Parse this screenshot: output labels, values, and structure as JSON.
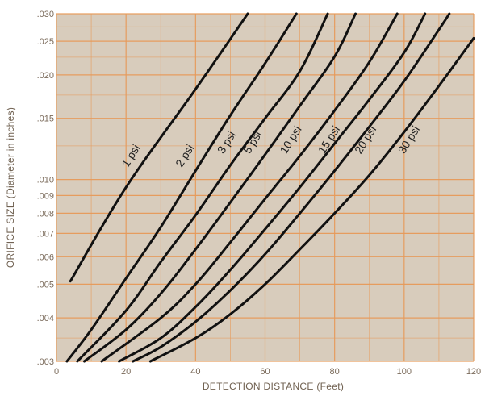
{
  "colors": {
    "plot_background": "#d8ccbc",
    "grid_color": "#e79a5a",
    "curve_color": "#111111",
    "tick_text_color": "#7a6a5a"
  },
  "chart_data": {
    "type": "line",
    "title": "",
    "xlabel": "DETECTION DISTANCE (Feet)",
    "ylabel": "ORIFICE SIZE (Diameter in inches)",
    "x_scale": "linear",
    "y_scale": "log",
    "xlim": [
      0,
      120
    ],
    "ylim": [
      0.003,
      0.03
    ],
    "grid": true,
    "x_ticks": [
      0,
      20,
      40,
      60,
      80,
      100,
      120
    ],
    "x_tick_labels": [
      "0",
      "20",
      "40",
      "60",
      "80",
      "100",
      "120"
    ],
    "y_ticks": [
      0.003,
      0.004,
      0.005,
      0.006,
      0.007,
      0.008,
      0.009,
      0.01,
      0.015,
      0.02,
      0.025,
      0.03
    ],
    "y_tick_labels": [
      ".003",
      ".004",
      ".005",
      ".006",
      ".007",
      ".008",
      ".009",
      ".010",
      ".015",
      ".020",
      ".025",
      ".030"
    ],
    "series": [
      {
        "name": "1 psi",
        "points": [
          [
            4,
            0.0051
          ],
          [
            20,
            0.0095
          ],
          [
            40,
            0.0182
          ],
          [
            55,
            0.03
          ]
        ]
      },
      {
        "name": "2 psi",
        "points": [
          [
            3,
            0.003
          ],
          [
            10,
            0.0037
          ],
          [
            20,
            0.0052
          ],
          [
            30,
            0.0073
          ],
          [
            40,
            0.0106
          ],
          [
            50,
            0.0153
          ],
          [
            60,
            0.0216
          ],
          [
            69,
            0.03
          ]
        ]
      },
      {
        "name": "3 psi",
        "points": [
          [
            6,
            0.003
          ],
          [
            20,
            0.0042
          ],
          [
            30,
            0.0058
          ],
          [
            40,
            0.0079
          ],
          [
            50,
            0.011
          ],
          [
            60,
            0.015
          ],
          [
            70,
            0.0205
          ],
          [
            78,
            0.03
          ]
        ]
      },
      {
        "name": "5 psi",
        "points": [
          [
            8,
            0.003
          ],
          [
            20,
            0.0037
          ],
          [
            30,
            0.0047
          ],
          [
            40,
            0.0063
          ],
          [
            50,
            0.0086
          ],
          [
            60,
            0.0118
          ],
          [
            70,
            0.0163
          ],
          [
            80,
            0.0226
          ],
          [
            86,
            0.03
          ]
        ]
      },
      {
        "name": "10 psi",
        "points": [
          [
            13,
            0.003
          ],
          [
            30,
            0.004
          ],
          [
            40,
            0.005
          ],
          [
            50,
            0.0066
          ],
          [
            60,
            0.0088
          ],
          [
            70,
            0.0117
          ],
          [
            80,
            0.0158
          ],
          [
            90,
            0.0218
          ],
          [
            98,
            0.03
          ]
        ]
      },
      {
        "name": "15 psi",
        "points": [
          [
            18,
            0.003
          ],
          [
            30,
            0.0035
          ],
          [
            40,
            0.0043
          ],
          [
            50,
            0.0055
          ],
          [
            60,
            0.0072
          ],
          [
            70,
            0.0095
          ],
          [
            80,
            0.0127
          ],
          [
            90,
            0.017
          ],
          [
            100,
            0.0232
          ],
          [
            106,
            0.03
          ]
        ]
      },
      {
        "name": "20 psi",
        "points": [
          [
            22,
            0.003
          ],
          [
            30,
            0.0033
          ],
          [
            40,
            0.0039
          ],
          [
            50,
            0.0048
          ],
          [
            60,
            0.0061
          ],
          [
            70,
            0.008
          ],
          [
            80,
            0.0106
          ],
          [
            90,
            0.0142
          ],
          [
            100,
            0.0192
          ],
          [
            110,
            0.027
          ],
          [
            113,
            0.03
          ]
        ]
      },
      {
        "name": "30 psi",
        "points": [
          [
            27,
            0.003
          ],
          [
            40,
            0.0035
          ],
          [
            50,
            0.0041
          ],
          [
            60,
            0.005
          ],
          [
            70,
            0.0063
          ],
          [
            80,
            0.008
          ],
          [
            90,
            0.0103
          ],
          [
            100,
            0.0137
          ],
          [
            110,
            0.0186
          ],
          [
            120,
            0.0255
          ]
        ]
      }
    ],
    "curve_labels": [
      {
        "text": "1 psi",
        "x": 20.5,
        "y": 0.0108
      },
      {
        "text": "2 psi",
        "x": 36.0,
        "y": 0.0108
      },
      {
        "text": "3 psi",
        "x": 48.0,
        "y": 0.0118
      },
      {
        "text": "5 psi",
        "x": 55.5,
        "y": 0.0118
      },
      {
        "text": "10 psi",
        "x": 66.0,
        "y": 0.0118
      },
      {
        "text": "15 psi",
        "x": 77.0,
        "y": 0.0118
      },
      {
        "text": "20 psi",
        "x": 87.5,
        "y": 0.0118
      },
      {
        "text": "30 psi",
        "x": 100.0,
        "y": 0.0118
      }
    ]
  }
}
